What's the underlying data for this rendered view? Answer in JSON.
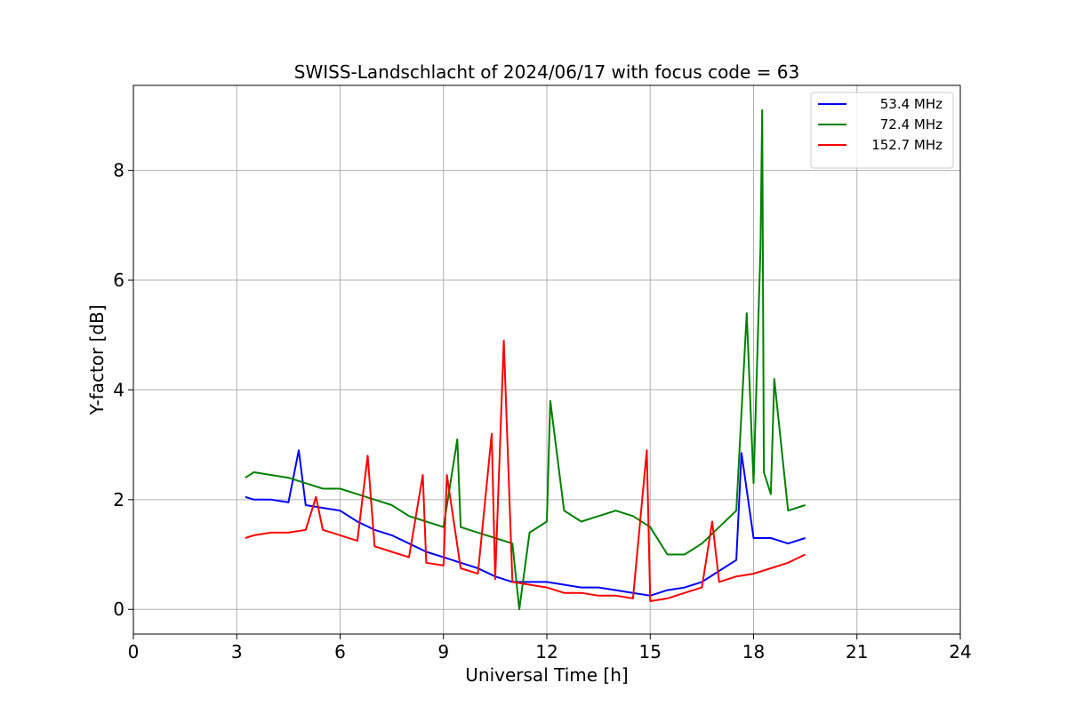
{
  "chart_data": {
    "type": "line",
    "title": "SWISS-Landschlacht of 2024/06/17 with focus code = 63",
    "xlabel": "Universal Time [h]",
    "ylabel": "Y-factor [dB]",
    "xlim": [
      0,
      24
    ],
    "ylim": [
      -0.45,
      9.55
    ],
    "xticks": [
      0,
      3,
      6,
      9,
      12,
      15,
      18,
      21,
      24
    ],
    "xtick_labels": [
      "0",
      "3",
      "6",
      "9",
      "12",
      "15",
      "18",
      "21",
      "24"
    ],
    "yticks": [
      0,
      2,
      4,
      6,
      8
    ],
    "ytick_labels": [
      "0",
      "2",
      "4",
      "6",
      "8"
    ],
    "grid": true,
    "legend_position": "top-right",
    "series": [
      {
        "name": "53.4 MHz",
        "color": "#0000ff",
        "x": [
          3.25,
          3.5,
          4.0,
          4.5,
          4.8,
          5.0,
          5.5,
          6.0,
          6.5,
          7.0,
          7.5,
          8.0,
          8.5,
          9.0,
          9.5,
          10.0,
          10.5,
          11.0,
          11.5,
          12.0,
          12.5,
          13.0,
          13.5,
          14.0,
          14.5,
          15.0,
          15.5,
          16.0,
          16.5,
          17.0,
          17.5,
          17.65,
          18.0,
          18.5,
          19.0,
          19.5
        ],
        "y": [
          2.05,
          2.0,
          2.0,
          1.95,
          2.9,
          1.9,
          1.85,
          1.8,
          1.6,
          1.45,
          1.35,
          1.2,
          1.05,
          0.95,
          0.85,
          0.75,
          0.6,
          0.5,
          0.5,
          0.5,
          0.45,
          0.4,
          0.4,
          0.35,
          0.3,
          0.25,
          0.35,
          0.4,
          0.5,
          0.7,
          0.9,
          2.85,
          1.3,
          1.3,
          1.2,
          1.3
        ]
      },
      {
        "name": "72.4 MHz",
        "color": "#008000",
        "x": [
          3.25,
          3.5,
          4.0,
          4.5,
          5.0,
          5.5,
          6.0,
          6.5,
          7.0,
          7.5,
          8.0,
          8.5,
          9.0,
          9.4,
          9.5,
          10.0,
          10.5,
          11.0,
          11.2,
          11.5,
          12.0,
          12.1,
          12.5,
          13.0,
          13.5,
          14.0,
          14.5,
          15.0,
          15.5,
          16.0,
          16.5,
          17.0,
          17.5,
          17.8,
          18.0,
          18.2,
          18.25,
          18.3,
          18.5,
          18.6,
          19.0,
          19.5
        ],
        "y": [
          2.4,
          2.5,
          2.45,
          2.4,
          2.3,
          2.2,
          2.2,
          2.1,
          2.0,
          1.9,
          1.7,
          1.6,
          1.5,
          3.1,
          1.5,
          1.4,
          1.3,
          1.2,
          0.0,
          1.4,
          1.6,
          3.8,
          1.8,
          1.6,
          1.7,
          1.8,
          1.7,
          1.5,
          1.0,
          1.0,
          1.2,
          1.5,
          1.8,
          5.4,
          2.3,
          6.6,
          9.1,
          2.5,
          2.1,
          4.2,
          1.8,
          1.9
        ]
      },
      {
        "name": "152.7 MHz",
        "color": "#ff0000",
        "x": [
          3.25,
          3.5,
          4.0,
          4.5,
          5.0,
          5.3,
          5.5,
          6.0,
          6.5,
          6.8,
          7.0,
          7.5,
          8.0,
          8.4,
          8.5,
          9.0,
          9.1,
          9.5,
          10.0,
          10.4,
          10.5,
          10.75,
          11.0,
          11.5,
          12.0,
          12.5,
          13.0,
          13.5,
          14.0,
          14.5,
          14.9,
          15.0,
          15.5,
          16.0,
          16.5,
          16.8,
          17.0,
          17.5,
          18.0,
          18.5,
          19.0,
          19.5
        ],
        "y": [
          1.3,
          1.35,
          1.4,
          1.4,
          1.45,
          2.05,
          1.45,
          1.35,
          1.25,
          2.8,
          1.15,
          1.05,
          0.95,
          2.45,
          0.85,
          0.8,
          2.45,
          0.75,
          0.65,
          3.2,
          0.55,
          4.9,
          0.5,
          0.45,
          0.4,
          0.3,
          0.3,
          0.25,
          0.25,
          0.2,
          2.9,
          0.15,
          0.2,
          0.3,
          0.4,
          1.6,
          0.5,
          0.6,
          0.65,
          0.75,
          0.85,
          1.0
        ]
      }
    ]
  }
}
